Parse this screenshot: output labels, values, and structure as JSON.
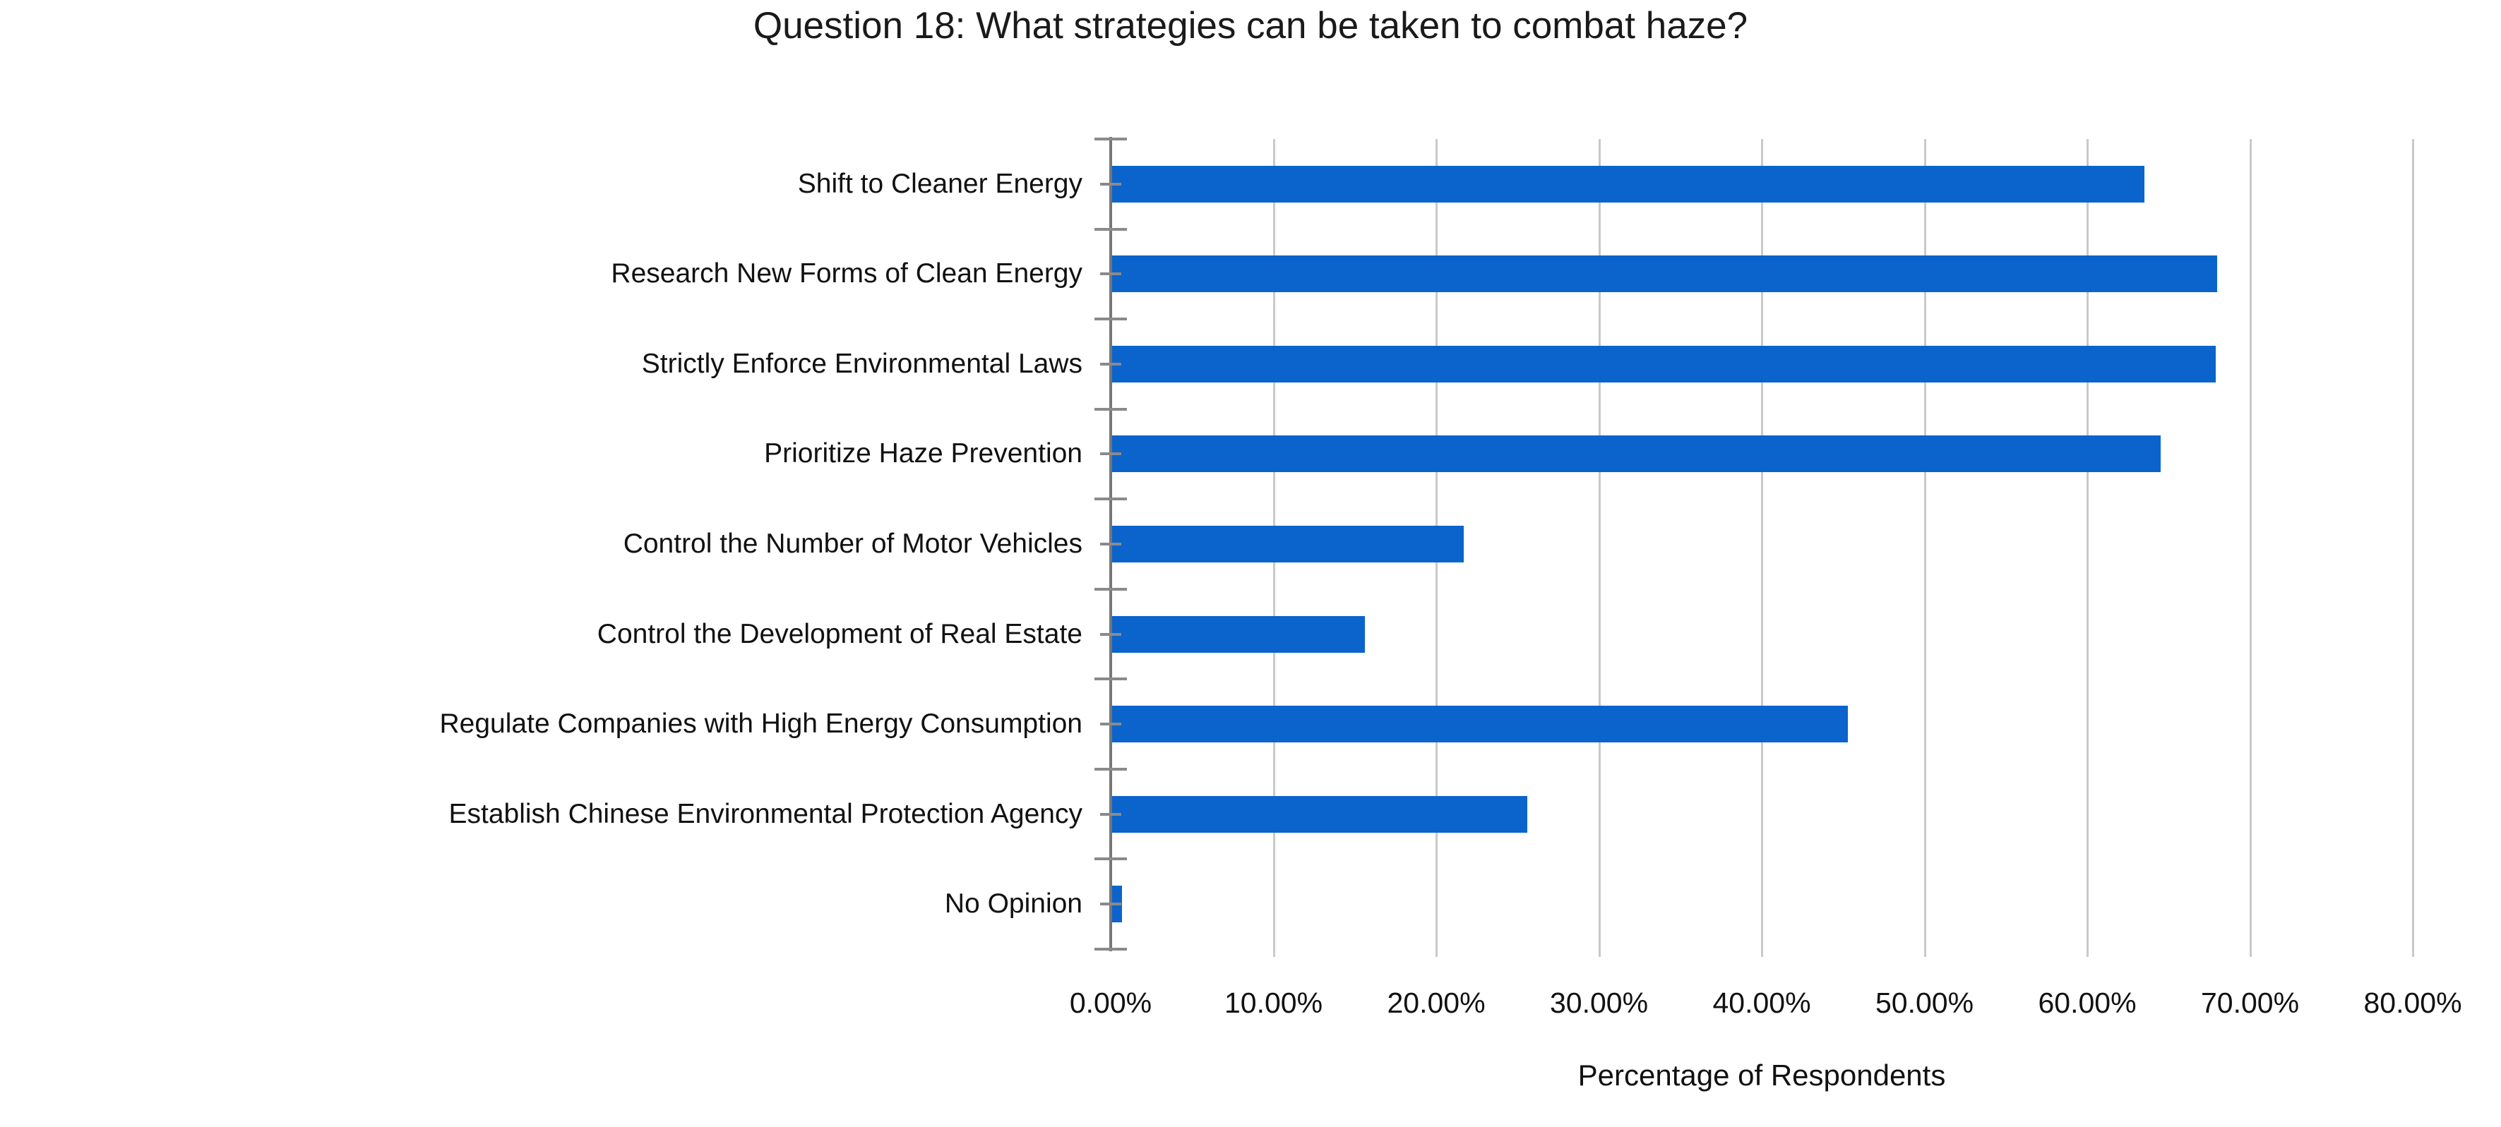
{
  "title": "Question 18: What strategies can be taken to combat haze?",
  "chart_data": {
    "type": "bar",
    "orientation": "horizontal",
    "title": "Question 18: What strategies can be taken to combat haze?",
    "categories": [
      "Shift to Cleaner Energy",
      "Research New Forms of Clean Energy",
      "Strictly Enforce Environmental Laws",
      "Prioritize Haze Prevention",
      "Control the Number of Motor Vehicles",
      "Control the Development of Real Estate",
      "Regulate Companies with High Energy Consumption",
      "Establish Chinese Environmental Protection Agency",
      "No Opinion"
    ],
    "values": [
      63.5,
      68.0,
      67.9,
      64.5,
      21.7,
      15.6,
      45.3,
      25.6,
      0.7
    ],
    "xlabel": "Percentage of Respondents",
    "ylabel": "",
    "xlim": [
      0,
      80
    ],
    "x_tick_labels": [
      "0.00%",
      "10.00%",
      "20.00%",
      "30.00%",
      "40.00%",
      "50.00%",
      "60.00%",
      "70.00%",
      "80.00%"
    ],
    "grid": true,
    "legend": "none",
    "bar_color": "#0a64cc",
    "gridline_color": "#c9c9c9",
    "axis_color": "#767676",
    "tick_color": "#8a8a8a"
  }
}
